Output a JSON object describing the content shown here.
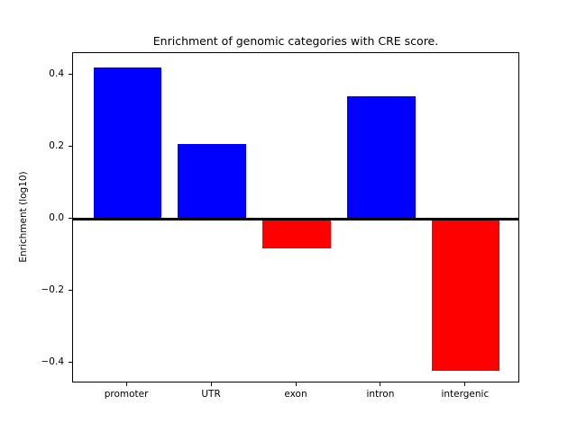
{
  "figure": {
    "title": "Enrichment of genomic categories with CRE score.",
    "ylabel": "Enrichment (log10)"
  },
  "chart_data": {
    "type": "bar",
    "title": "Enrichment of genomic categories with CRE score.",
    "xlabel": "",
    "ylabel": "Enrichment (log10)",
    "categories": [
      "promoter",
      "UTR",
      "exon",
      "intron",
      "intergenic"
    ],
    "values": [
      0.42,
      0.21,
      -0.08,
      0.34,
      -0.42
    ],
    "bar_colors": [
      "#0000ff",
      "#0000ff",
      "#ff0000",
      "#0000ff",
      "#ff0000"
    ],
    "positive_color": "#0000ff",
    "negative_color": "#ff0000",
    "yticks": [
      0.4,
      0.2,
      0.0,
      -0.2,
      -0.4
    ],
    "ytick_labels": [
      "0.4",
      "0.2",
      "0.0",
      "−0.2",
      "−0.4"
    ],
    "ylim": [
      -0.455,
      0.461
    ],
    "xlim": [
      -0.64,
      4.64
    ],
    "bar_width": 0.8,
    "zero_line": true,
    "grid": false,
    "legend": null,
    "frame_color": "#000000",
    "background_color": "#ffffff"
  }
}
